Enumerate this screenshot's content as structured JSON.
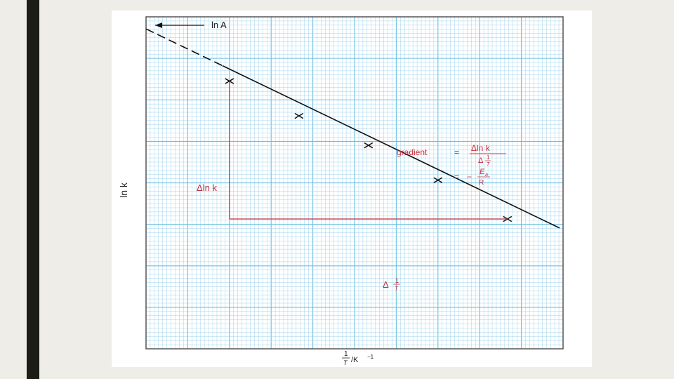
{
  "chart_data": {
    "type": "line",
    "title": "",
    "xlabel": "1/T / K⁻¹",
    "ylabel": "ln k",
    "x": [
      1,
      2,
      3,
      4,
      5
    ],
    "series": [
      {
        "values": [
          10.0,
          8.7,
          7.6,
          6.3,
          4.85
        ]
      }
    ],
    "fit_line": {
      "intercept_label": "ln A",
      "x_start": 0,
      "y_start": 11.7,
      "slope": -1.25
    },
    "xlim": [
      -0.2,
      5.8
    ],
    "ylim": [
      0,
      12.4
    ],
    "grid": true,
    "annotations": {
      "intercept": "ln A",
      "delta_lnk": "Δln k",
      "delta_invT": "Δ 1/T",
      "gradient_word": "gradient",
      "gradient_eq": "=",
      "gradient_num": "Δln k",
      "gradient_den_delta": "Δ",
      "gradient_den_num": "1",
      "gradient_den_var": "T",
      "second_eq": "=",
      "second_minus": "−",
      "ea_var": "E",
      "ea_sub": "a",
      "r_den": "R"
    },
    "xlabel_parts": {
      "num": "1",
      "den": "T",
      "unit": "/K",
      "exp": "−1"
    },
    "colors": {
      "grid": "#9fd3ec",
      "grid_major": "#6cbfe3",
      "line": "#111111",
      "annotation": "#c8313f"
    }
  }
}
